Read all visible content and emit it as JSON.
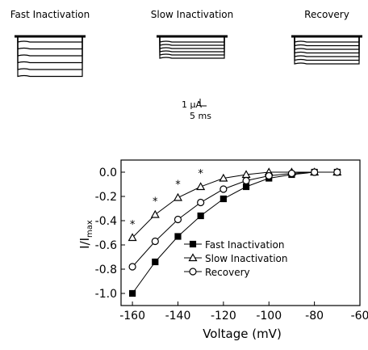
{
  "panels": {
    "titles": [
      "Fast Inactivation",
      "Slow Inactivation",
      "Recovery"
    ],
    "scale_bar": {
      "current": "1 μA",
      "time": "5 ms"
    }
  },
  "chart_data": {
    "type": "line",
    "xlabel": "Voltage (mV)",
    "ylabel": {
      "text": "I/I",
      "subscript": "max"
    },
    "x": [
      -160,
      -150,
      -140,
      -130,
      -120,
      -110,
      -100,
      -90,
      -80,
      -70
    ],
    "series": [
      {
        "name": "Fast Inactivation",
        "marker": "square-filled",
        "color": "#000000",
        "values": [
          -1.0,
          -0.74,
          -0.53,
          -0.36,
          -0.22,
          -0.12,
          -0.05,
          -0.02,
          0.0,
          0.0
        ]
      },
      {
        "name": "Slow Inactivation",
        "marker": "triangle-open",
        "color": "#000000",
        "values": [
          -0.54,
          -0.35,
          -0.21,
          -0.12,
          -0.05,
          -0.02,
          0.0,
          0.0,
          0.0,
          0.0
        ]
      },
      {
        "name": "Recovery",
        "marker": "circle-open",
        "color": "#000000",
        "values": [
          -0.78,
          -0.57,
          -0.39,
          -0.25,
          -0.14,
          -0.07,
          -0.03,
          -0.01,
          0.0,
          0.0
        ]
      }
    ],
    "annotations": [
      "*",
      "*",
      "*",
      "*"
    ],
    "xlim": [
      -165,
      -60
    ],
    "xticks": [
      -160,
      -140,
      -120,
      -100,
      -80,
      -60
    ],
    "ylim": [
      -1.1,
      0.1
    ],
    "yticks": [
      {
        "value": 0,
        "label": "0.0"
      },
      {
        "value": -0.2,
        "label": "-0.2"
      },
      {
        "value": -0.4,
        "label": "-0.4"
      },
      {
        "value": -0.6,
        "label": "-0.6"
      },
      {
        "value": -0.8,
        "label": "-0.8"
      },
      {
        "value": -1.0,
        "label": "-1.0"
      }
    ],
    "grid": false
  }
}
